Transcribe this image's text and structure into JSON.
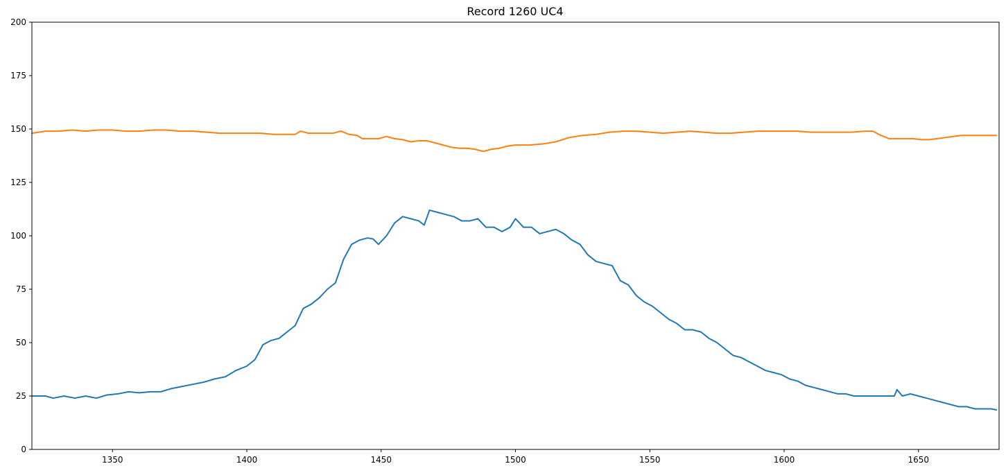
{
  "chart_data": {
    "type": "line",
    "title": "Record 1260 UC4",
    "xlabel": "",
    "ylabel": "",
    "xlim": [
      1320,
      1680
    ],
    "ylim": [
      0,
      200
    ],
    "x_ticks": [
      1350,
      1400,
      1450,
      1500,
      1550,
      1600,
      1650
    ],
    "y_ticks": [
      0,
      25,
      50,
      75,
      100,
      125,
      150,
      175,
      200
    ],
    "grid": false,
    "legend": "none",
    "series": [
      {
        "color": "#1f77b4",
        "points": [
          [
            1320,
            25
          ],
          [
            1325,
            25
          ],
          [
            1328,
            24
          ],
          [
            1332,
            25
          ],
          [
            1336,
            24
          ],
          [
            1340,
            25
          ],
          [
            1344,
            24
          ],
          [
            1348,
            25.5
          ],
          [
            1352,
            26
          ],
          [
            1356,
            27
          ],
          [
            1360,
            26.5
          ],
          [
            1364,
            27
          ],
          [
            1368,
            27
          ],
          [
            1372,
            28.5
          ],
          [
            1376,
            29.5
          ],
          [
            1380,
            30.5
          ],
          [
            1384,
            31.5
          ],
          [
            1388,
            33
          ],
          [
            1392,
            34
          ],
          [
            1396,
            37
          ],
          [
            1400,
            39
          ],
          [
            1403,
            42
          ],
          [
            1406,
            49
          ],
          [
            1409,
            51
          ],
          [
            1412,
            52
          ],
          [
            1415,
            55
          ],
          [
            1418,
            58
          ],
          [
            1421,
            66
          ],
          [
            1424,
            68
          ],
          [
            1427,
            71
          ],
          [
            1430,
            75
          ],
          [
            1433,
            78
          ],
          [
            1436,
            89
          ],
          [
            1439,
            96
          ],
          [
            1442,
            98
          ],
          [
            1445,
            99
          ],
          [
            1447,
            98.5
          ],
          [
            1449,
            96
          ],
          [
            1452,
            100
          ],
          [
            1455,
            106
          ],
          [
            1458,
            109
          ],
          [
            1461,
            108
          ],
          [
            1464,
            107
          ],
          [
            1466,
            105
          ],
          [
            1468,
            112
          ],
          [
            1471,
            111
          ],
          [
            1474,
            110
          ],
          [
            1477,
            109
          ],
          [
            1480,
            107
          ],
          [
            1483,
            107
          ],
          [
            1486,
            108
          ],
          [
            1489,
            104
          ],
          [
            1492,
            104
          ],
          [
            1495,
            102
          ],
          [
            1498,
            104
          ],
          [
            1500,
            108
          ],
          [
            1503,
            104
          ],
          [
            1506,
            104
          ],
          [
            1509,
            101
          ],
          [
            1512,
            102
          ],
          [
            1515,
            103
          ],
          [
            1518,
            101
          ],
          [
            1521,
            98
          ],
          [
            1524,
            96
          ],
          [
            1527,
            91
          ],
          [
            1530,
            88
          ],
          [
            1533,
            87
          ],
          [
            1536,
            86
          ],
          [
            1539,
            79
          ],
          [
            1542,
            77
          ],
          [
            1545,
            72
          ],
          [
            1548,
            69
          ],
          [
            1551,
            67
          ],
          [
            1554,
            64
          ],
          [
            1557,
            61
          ],
          [
            1560,
            59
          ],
          [
            1563,
            56
          ],
          [
            1566,
            56
          ],
          [
            1569,
            55
          ],
          [
            1572,
            52
          ],
          [
            1575,
            50
          ],
          [
            1578,
            47
          ],
          [
            1581,
            44
          ],
          [
            1584,
            43
          ],
          [
            1587,
            41
          ],
          [
            1590,
            39
          ],
          [
            1593,
            37
          ],
          [
            1596,
            36
          ],
          [
            1599,
            35
          ],
          [
            1602,
            33
          ],
          [
            1605,
            32
          ],
          [
            1608,
            30
          ],
          [
            1611,
            29
          ],
          [
            1614,
            28
          ],
          [
            1617,
            27
          ],
          [
            1620,
            26
          ],
          [
            1623,
            26
          ],
          [
            1626,
            25
          ],
          [
            1629,
            25
          ],
          [
            1632,
            25
          ],
          [
            1635,
            25
          ],
          [
            1638,
            25
          ],
          [
            1641,
            25
          ],
          [
            1642,
            28
          ],
          [
            1644,
            25
          ],
          [
            1647,
            26
          ],
          [
            1650,
            25
          ],
          [
            1653,
            24
          ],
          [
            1656,
            23
          ],
          [
            1659,
            22
          ],
          [
            1662,
            21
          ],
          [
            1665,
            20
          ],
          [
            1668,
            20
          ],
          [
            1671,
            19
          ],
          [
            1674,
            19
          ],
          [
            1677,
            19
          ],
          [
            1679,
            18.5
          ]
        ]
      },
      {
        "color": "#ff7f0e",
        "points": [
          [
            1320,
            148
          ],
          [
            1325,
            149
          ],
          [
            1330,
            149
          ],
          [
            1335,
            149.5
          ],
          [
            1340,
            149
          ],
          [
            1345,
            149.5
          ],
          [
            1350,
            149.5
          ],
          [
            1355,
            149
          ],
          [
            1360,
            149
          ],
          [
            1365,
            149.5
          ],
          [
            1370,
            149.5
          ],
          [
            1375,
            149
          ],
          [
            1380,
            149
          ],
          [
            1385,
            148.5
          ],
          [
            1390,
            148
          ],
          [
            1395,
            148
          ],
          [
            1400,
            148
          ],
          [
            1405,
            148
          ],
          [
            1410,
            147.5
          ],
          [
            1415,
            147.5
          ],
          [
            1418,
            147.5
          ],
          [
            1420,
            149
          ],
          [
            1423,
            148
          ],
          [
            1426,
            148
          ],
          [
            1429,
            148
          ],
          [
            1432,
            148
          ],
          [
            1435,
            149
          ],
          [
            1438,
            147.5
          ],
          [
            1441,
            147
          ],
          [
            1443,
            145.5
          ],
          [
            1446,
            145.5
          ],
          [
            1449,
            145.5
          ],
          [
            1452,
            146.5
          ],
          [
            1455,
            145.5
          ],
          [
            1458,
            145
          ],
          [
            1461,
            144
          ],
          [
            1464,
            144.5
          ],
          [
            1467,
            144.5
          ],
          [
            1470,
            143.5
          ],
          [
            1473,
            142.5
          ],
          [
            1476,
            141.5
          ],
          [
            1479,
            141
          ],
          [
            1482,
            141
          ],
          [
            1485,
            140.5
          ],
          [
            1488,
            139.5
          ],
          [
            1491,
            140.5
          ],
          [
            1494,
            141
          ],
          [
            1497,
            142
          ],
          [
            1500,
            142.5
          ],
          [
            1505,
            142.5
          ],
          [
            1510,
            143
          ],
          [
            1515,
            144
          ],
          [
            1520,
            146
          ],
          [
            1525,
            147
          ],
          [
            1530,
            147.5
          ],
          [
            1535,
            148.5
          ],
          [
            1540,
            149
          ],
          [
            1545,
            149
          ],
          [
            1550,
            148.5
          ],
          [
            1555,
            148
          ],
          [
            1560,
            148.5
          ],
          [
            1565,
            149
          ],
          [
            1570,
            148.5
          ],
          [
            1575,
            148
          ],
          [
            1580,
            148
          ],
          [
            1585,
            148.5
          ],
          [
            1590,
            149
          ],
          [
            1595,
            149
          ],
          [
            1600,
            149
          ],
          [
            1605,
            149
          ],
          [
            1610,
            148.5
          ],
          [
            1615,
            148.5
          ],
          [
            1620,
            148.5
          ],
          [
            1625,
            148.5
          ],
          [
            1630,
            149
          ],
          [
            1633,
            149
          ],
          [
            1636,
            147
          ],
          [
            1639,
            145.5
          ],
          [
            1642,
            145.5
          ],
          [
            1645,
            145.5
          ],
          [
            1648,
            145.5
          ],
          [
            1651,
            145
          ],
          [
            1654,
            145
          ],
          [
            1657,
            145.5
          ],
          [
            1660,
            146
          ],
          [
            1663,
            146.5
          ],
          [
            1666,
            147
          ],
          [
            1669,
            147
          ],
          [
            1672,
            147
          ],
          [
            1675,
            147
          ],
          [
            1679,
            147
          ]
        ]
      }
    ]
  }
}
